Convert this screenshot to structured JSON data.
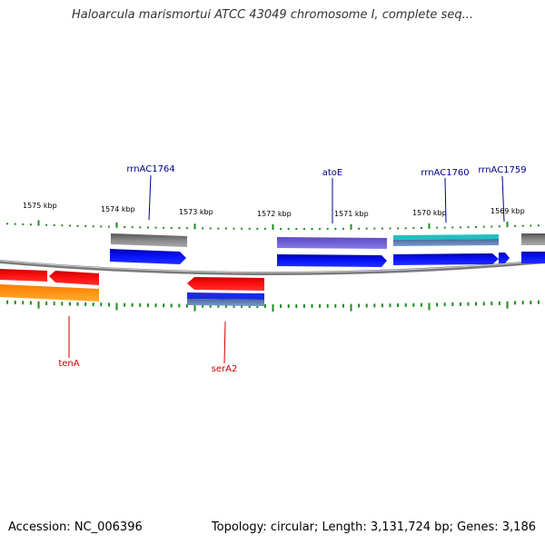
{
  "title": "Haloarcula marismortui ATCC 43049 chromosome I, complete seq...",
  "footer": {
    "accession": "Accession: NC_006396",
    "summary": "Topology: circular; Length: 3,131,724 bp; Genes: 3,186"
  },
  "colors": {
    "backbone": "#8a8a8a",
    "tick": "#1e8c1e",
    "gene_label_top": "#00008b",
    "gene_label_bottom": "#cc0000",
    "forward_cds": "#0000ee",
    "reverse_cds": "#ee0000",
    "gray_feature": "#666666",
    "orange_feature": "#ff8c00",
    "purple_feature": "#6a5acd",
    "teal_feature": "#20b2aa"
  },
  "scale_labels": [
    "1575 kbp",
    "1574 kbp",
    "1573 kbp",
    "1572 kbp",
    "1571 kbp",
    "1570 kbp",
    "1569 kbp"
  ],
  "gene_labels": {
    "top": [
      "rrnAC1764",
      "atoE",
      "rrnAC1760",
      "rrnAC1759"
    ],
    "bottom": [
      "tenA",
      "serA2"
    ]
  }
}
